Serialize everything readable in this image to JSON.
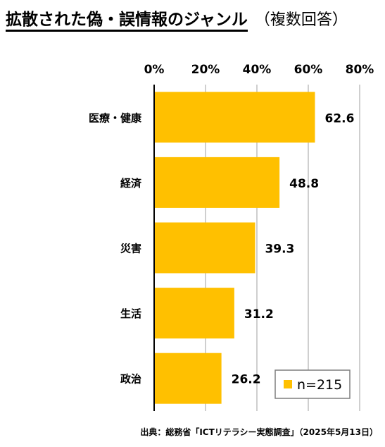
{
  "title": "拡散された偽・誤情報のジャンル",
  "subtitle": "（複数回答）",
  "source": "出典：総務省「ICTリテラシー実態調査」（2025年5月13日）",
  "colors": {
    "bar": "#FFC000",
    "grid": "#BFBFBF",
    "axis": "#000000",
    "legend_border": "#7F7F7F"
  },
  "chart_data": {
    "type": "bar",
    "orientation": "horizontal",
    "categories": [
      "医療・健康",
      "経済",
      "災害",
      "生活",
      "政治"
    ],
    "values": [
      62.6,
      48.8,
      39.3,
      31.2,
      26.2
    ],
    "data_labels": [
      "62.6",
      "48.8",
      "39.3",
      "31.2",
      "26.2"
    ],
    "xlim": [
      0,
      80
    ],
    "xticks": [
      "0%",
      "20%",
      "40%",
      "60%",
      "80%"
    ],
    "xaxis_position": "top",
    "grid": true,
    "legend": {
      "text": "n=215",
      "position": "bottom-right"
    }
  }
}
